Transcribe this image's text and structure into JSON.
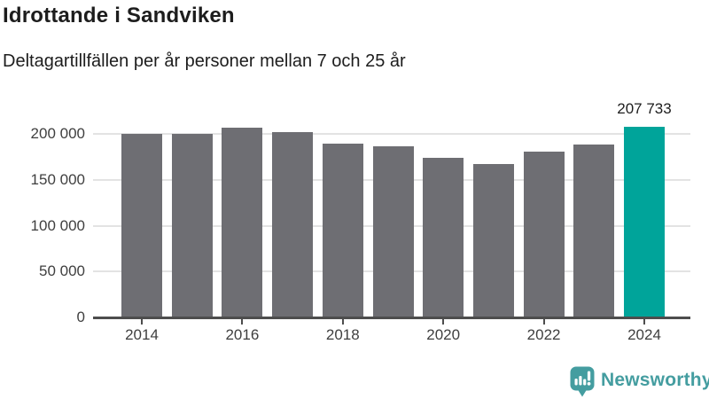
{
  "header": {
    "title": "Idrottande i Sandviken",
    "subtitle": "Deltagartillfällen per år personer mellan 7 och 25 år"
  },
  "chart_data": {
    "type": "bar",
    "title": "Idrottande i Sandviken",
    "subtitle": "Deltagartillfällen per år personer mellan 7 och 25 år",
    "categories": [
      "2014",
      "2015",
      "2016",
      "2017",
      "2018",
      "2019",
      "2020",
      "2021",
      "2022",
      "2023",
      "2024"
    ],
    "values": [
      200300,
      200200,
      206900,
      202000,
      189300,
      186300,
      173600,
      166900,
      180800,
      188500,
      207733
    ],
    "highlight": {
      "index": 10,
      "label": "207 733",
      "value": 207733
    },
    "x_axis": {
      "tick_labels": [
        "2014",
        "2016",
        "2018",
        "2020",
        "2022",
        "2024"
      ]
    },
    "y_axis": {
      "tick_labels": [
        "0",
        "50 000",
        "100 000",
        "150 000",
        "200 000"
      ],
      "tick_values": [
        0,
        50000,
        100000,
        150000,
        200000
      ]
    },
    "ylim": [
      0,
      220000
    ],
    "grid": true,
    "legend_position": "none",
    "colors": {
      "bar": "#6e6e73",
      "highlight": "#00a49a",
      "gridline": "#e3e3e3",
      "axis": "#4d4d4d",
      "tick_text": "#3f3f3f",
      "value_text": "#1d1d1d"
    }
  },
  "footer": {
    "brand": "Newsworthy",
    "brand_color": "#449da0",
    "logo_icon": "newsworthy-speech-bubble-bar-chart-icon"
  }
}
